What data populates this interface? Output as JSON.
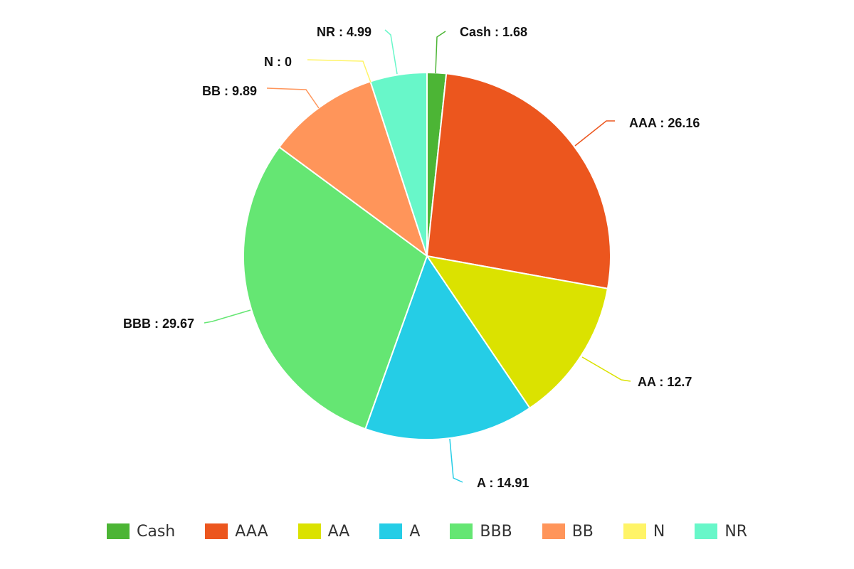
{
  "chart_data": {
    "type": "pie",
    "slices": [
      {
        "label": "Cash",
        "value": 1.68,
        "color": "#4cb535",
        "text": "Cash : 1.68"
      },
      {
        "label": "AAA",
        "value": 26.16,
        "color": "#ec561e",
        "text": "AAA : 26.16"
      },
      {
        "label": "AA",
        "value": 12.7,
        "color": "#dbe200",
        "text": "AA : 12.7"
      },
      {
        "label": "A",
        "value": 14.91,
        "color": "#25cde6",
        "text": "A : 14.91"
      },
      {
        "label": "BBB",
        "value": 29.67,
        "color": "#65e673",
        "text": "BBB : 29.67"
      },
      {
        "label": "BB",
        "value": 9.89,
        "color": "#ff955a",
        "text": "BB : 9.89"
      },
      {
        "label": "N",
        "value": 0,
        "color": "#fff467",
        "text": "N : 0"
      },
      {
        "label": "NR",
        "value": 4.99,
        "color": "#68f7c9",
        "text": "NR : 4.99"
      }
    ],
    "legend": {
      "placement": "bottom",
      "entries": [
        "Cash",
        "AAA",
        "AA",
        "A",
        "BBB",
        "BB",
        "N",
        "NR"
      ]
    }
  }
}
